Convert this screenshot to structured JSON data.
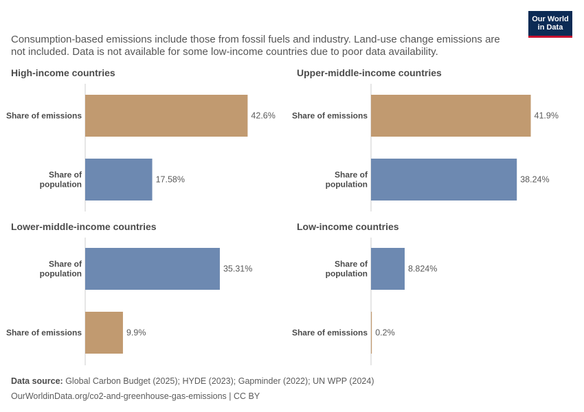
{
  "subtitle": "Consumption-based emissions include those from fossil fuels and industry. Land-use change emissions are not included. Data is not available for some low-income countries due to poor data availability.",
  "logo": {
    "line1": "Our World",
    "line2": "in Data"
  },
  "colors": {
    "emissions": "#c19a70",
    "population": "#6d89b1"
  },
  "chart_data": [
    {
      "type": "bar",
      "title": "High-income countries",
      "categories": [
        "Share of emissions",
        "Share of population"
      ],
      "values": [
        42.6,
        17.58
      ],
      "value_labels": [
        "42.6%",
        "17.58%"
      ],
      "series_keys": [
        "emissions",
        "population"
      ]
    },
    {
      "type": "bar",
      "title": "Upper-middle-income countries",
      "categories": [
        "Share of emissions",
        "Share of population"
      ],
      "values": [
        41.9,
        38.24
      ],
      "value_labels": [
        "41.9%",
        "38.24%"
      ],
      "series_keys": [
        "emissions",
        "population"
      ]
    },
    {
      "type": "bar",
      "title": "Lower-middle-income countries",
      "categories": [
        "Share of population",
        "Share of emissions"
      ],
      "values": [
        35.31,
        9.9
      ],
      "value_labels": [
        "35.31%",
        "9.9%"
      ],
      "series_keys": [
        "population",
        "emissions"
      ]
    },
    {
      "type": "bar",
      "title": "Low-income countries",
      "categories": [
        "Share of population",
        "Share of emissions"
      ],
      "values": [
        8.824,
        0.2
      ],
      "value_labels": [
        "8.824%",
        "0.2%"
      ],
      "series_keys": [
        "population",
        "emissions"
      ]
    }
  ],
  "footer": {
    "source_label": "Data source:",
    "source_text": " Global Carbon Budget (2025); HYDE (2023); Gapminder (2022); UN WPP (2024)",
    "url_text": "OurWorldinData.org/co2-and-greenhouse-gas-emissions | CC BY"
  }
}
